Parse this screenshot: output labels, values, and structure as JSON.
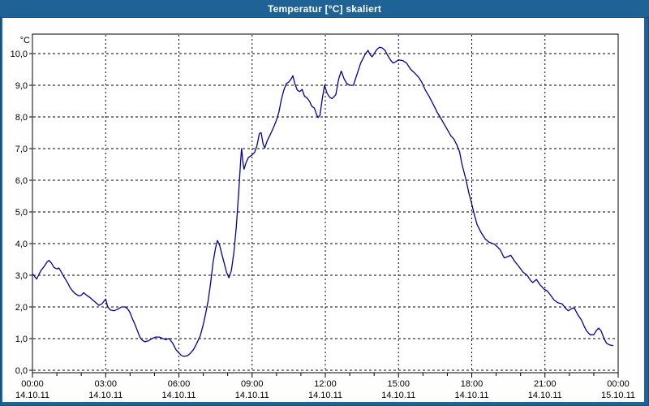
{
  "window": {
    "title": "Temperatur [°C] skaliert",
    "titlebar_color": "#1F6396",
    "border_color": "#1F6396",
    "plot_background": "#FFFFFF"
  },
  "chart_data": {
    "type": "line",
    "title": "Temperatur [°C] skaliert",
    "ylabel": "°C",
    "xlabel": "",
    "grid": true,
    "legend": "none",
    "ylim": [
      0,
      10.6
    ],
    "xlim_hours": [
      0,
      24
    ],
    "line_color": "#0000A0",
    "grid_color": "#000000",
    "frame_color": "#000000",
    "y_ticks": [
      {
        "value": 0,
        "label": "0,0"
      },
      {
        "value": 1,
        "label": "1,0"
      },
      {
        "value": 2,
        "label": "2,0"
      },
      {
        "value": 3,
        "label": "3,0"
      },
      {
        "value": 4,
        "label": "4,0"
      },
      {
        "value": 5,
        "label": "5,0"
      },
      {
        "value": 6,
        "label": "6,0"
      },
      {
        "value": 7,
        "label": "7,0"
      },
      {
        "value": 8,
        "label": "8,0"
      },
      {
        "value": 9,
        "label": "9,0"
      },
      {
        "value": 10,
        "label": "10,0"
      }
    ],
    "x_ticks": [
      {
        "hour": 0,
        "time": "00:00",
        "date": "14.10.11"
      },
      {
        "hour": 3,
        "time": "03:00",
        "date": "14.10.11"
      },
      {
        "hour": 6,
        "time": "06:00",
        "date": "14.10.11"
      },
      {
        "hour": 9,
        "time": "09:00",
        "date": "14.10.11"
      },
      {
        "hour": 12,
        "time": "12:00",
        "date": "14.10.11"
      },
      {
        "hour": 15,
        "time": "15:00",
        "date": "14.10.11"
      },
      {
        "hour": 18,
        "time": "18:00",
        "date": "14.10.11"
      },
      {
        "hour": 21,
        "time": "21:00",
        "date": "14.10.11"
      },
      {
        "hour": 24,
        "time": "00:00",
        "date": "15.10.11"
      }
    ],
    "minor_x_tick_every_hours": 1,
    "series": [
      {
        "name": "Temperatur",
        "points": [
          [
            0.0,
            3.05
          ],
          [
            0.1,
            2.95
          ],
          [
            0.17,
            2.88
          ],
          [
            0.25,
            3.0
          ],
          [
            0.35,
            3.15
          ],
          [
            0.5,
            3.3
          ],
          [
            0.6,
            3.42
          ],
          [
            0.68,
            3.47
          ],
          [
            0.78,
            3.38
          ],
          [
            0.88,
            3.25
          ],
          [
            1.0,
            3.2
          ],
          [
            1.08,
            3.23
          ],
          [
            1.17,
            3.12
          ],
          [
            1.25,
            3.0
          ],
          [
            1.35,
            2.88
          ],
          [
            1.45,
            2.75
          ],
          [
            1.55,
            2.6
          ],
          [
            1.65,
            2.5
          ],
          [
            1.75,
            2.42
          ],
          [
            1.9,
            2.35
          ],
          [
            2.0,
            2.37
          ],
          [
            2.1,
            2.45
          ],
          [
            2.2,
            2.38
          ],
          [
            2.35,
            2.3
          ],
          [
            2.5,
            2.2
          ],
          [
            2.62,
            2.12
          ],
          [
            2.73,
            2.05
          ],
          [
            2.85,
            2.1
          ],
          [
            3.0,
            2.25
          ],
          [
            3.08,
            2.0
          ],
          [
            3.2,
            1.9
          ],
          [
            3.35,
            1.88
          ],
          [
            3.5,
            1.93
          ],
          [
            3.65,
            2.0
          ],
          [
            3.8,
            2.0
          ],
          [
            3.92,
            1.92
          ],
          [
            4.0,
            1.82
          ],
          [
            4.1,
            1.62
          ],
          [
            4.2,
            1.45
          ],
          [
            4.3,
            1.25
          ],
          [
            4.4,
            1.05
          ],
          [
            4.5,
            0.95
          ],
          [
            4.6,
            0.9
          ],
          [
            4.75,
            0.93
          ],
          [
            4.9,
            1.0
          ],
          [
            5.05,
            1.05
          ],
          [
            5.2,
            1.05
          ],
          [
            5.35,
            1.0
          ],
          [
            5.45,
            0.97
          ],
          [
            5.6,
            1.0
          ],
          [
            5.75,
            0.85
          ],
          [
            5.88,
            0.65
          ],
          [
            6.0,
            0.55
          ],
          [
            6.1,
            0.47
          ],
          [
            6.2,
            0.44
          ],
          [
            6.35,
            0.46
          ],
          [
            6.45,
            0.52
          ],
          [
            6.6,
            0.65
          ],
          [
            6.75,
            0.88
          ],
          [
            6.88,
            1.1
          ],
          [
            7.0,
            1.45
          ],
          [
            7.1,
            1.8
          ],
          [
            7.2,
            2.2
          ],
          [
            7.3,
            2.75
          ],
          [
            7.4,
            3.4
          ],
          [
            7.5,
            3.85
          ],
          [
            7.58,
            4.1
          ],
          [
            7.67,
            3.95
          ],
          [
            7.75,
            3.7
          ],
          [
            7.85,
            3.4
          ],
          [
            7.95,
            3.1
          ],
          [
            8.05,
            2.92
          ],
          [
            8.15,
            3.15
          ],
          [
            8.25,
            3.7
          ],
          [
            8.35,
            4.5
          ],
          [
            8.45,
            5.6
          ],
          [
            8.53,
            6.6
          ],
          [
            8.57,
            7.0
          ],
          [
            8.62,
            6.6
          ],
          [
            8.67,
            6.35
          ],
          [
            8.75,
            6.55
          ],
          [
            8.85,
            6.72
          ],
          [
            9.0,
            6.8
          ],
          [
            9.1,
            6.88
          ],
          [
            9.2,
            7.1
          ],
          [
            9.3,
            7.48
          ],
          [
            9.37,
            7.5
          ],
          [
            9.45,
            7.15
          ],
          [
            9.52,
            7.02
          ],
          [
            9.62,
            7.25
          ],
          [
            9.75,
            7.45
          ],
          [
            9.87,
            7.65
          ],
          [
            10.0,
            7.9
          ],
          [
            10.1,
            8.15
          ],
          [
            10.2,
            8.55
          ],
          [
            10.3,
            8.85
          ],
          [
            10.4,
            9.05
          ],
          [
            10.5,
            9.1
          ],
          [
            10.6,
            9.2
          ],
          [
            10.67,
            9.3
          ],
          [
            10.75,
            9.05
          ],
          [
            10.85,
            8.85
          ],
          [
            10.95,
            8.8
          ],
          [
            11.05,
            8.87
          ],
          [
            11.15,
            8.65
          ],
          [
            11.25,
            8.6
          ],
          [
            11.35,
            8.5
          ],
          [
            11.45,
            8.33
          ],
          [
            11.55,
            8.28
          ],
          [
            11.63,
            8.1
          ],
          [
            11.7,
            7.98
          ],
          [
            11.78,
            8.05
          ],
          [
            11.88,
            8.6
          ],
          [
            11.97,
            9.0
          ],
          [
            12.07,
            8.75
          ],
          [
            12.18,
            8.62
          ],
          [
            12.28,
            8.58
          ],
          [
            12.43,
            8.7
          ],
          [
            12.55,
            9.2
          ],
          [
            12.65,
            9.45
          ],
          [
            12.77,
            9.2
          ],
          [
            12.88,
            9.05
          ],
          [
            13.0,
            9.0
          ],
          [
            13.15,
            9.0
          ],
          [
            13.3,
            9.35
          ],
          [
            13.45,
            9.7
          ],
          [
            13.55,
            9.85
          ],
          [
            13.65,
            10.0
          ],
          [
            13.75,
            10.1
          ],
          [
            13.85,
            9.95
          ],
          [
            13.92,
            9.9
          ],
          [
            14.0,
            10.0
          ],
          [
            14.1,
            10.12
          ],
          [
            14.22,
            10.2
          ],
          [
            14.33,
            10.18
          ],
          [
            14.45,
            10.1
          ],
          [
            14.55,
            9.95
          ],
          [
            14.67,
            9.8
          ],
          [
            14.78,
            9.7
          ],
          [
            14.9,
            9.75
          ],
          [
            15.0,
            9.8
          ],
          [
            15.17,
            9.78
          ],
          [
            15.33,
            9.7
          ],
          [
            15.5,
            9.5
          ],
          [
            15.67,
            9.38
          ],
          [
            15.83,
            9.25
          ],
          [
            15.95,
            9.1
          ],
          [
            16.1,
            8.85
          ],
          [
            16.25,
            8.65
          ],
          [
            16.42,
            8.4
          ],
          [
            16.58,
            8.15
          ],
          [
            16.7,
            8.0
          ],
          [
            16.85,
            7.8
          ],
          [
            17.0,
            7.6
          ],
          [
            17.15,
            7.4
          ],
          [
            17.27,
            7.3
          ],
          [
            17.4,
            7.1
          ],
          [
            17.5,
            6.9
          ],
          [
            17.6,
            6.5
          ],
          [
            17.77,
            6.0
          ],
          [
            17.88,
            5.6
          ],
          [
            17.97,
            5.35
          ],
          [
            18.1,
            4.93
          ],
          [
            18.22,
            4.6
          ],
          [
            18.37,
            4.37
          ],
          [
            18.55,
            4.15
          ],
          [
            18.7,
            4.05
          ],
          [
            18.93,
            3.98
          ],
          [
            19.05,
            3.9
          ],
          [
            19.17,
            3.8
          ],
          [
            19.33,
            3.55
          ],
          [
            19.45,
            3.58
          ],
          [
            19.6,
            3.63
          ],
          [
            19.75,
            3.45
          ],
          [
            19.93,
            3.28
          ],
          [
            20.1,
            3.1
          ],
          [
            20.27,
            3.0
          ],
          [
            20.4,
            2.85
          ],
          [
            20.5,
            2.77
          ],
          [
            20.65,
            2.87
          ],
          [
            20.8,
            2.7
          ],
          [
            20.97,
            2.56
          ],
          [
            21.1,
            2.5
          ],
          [
            21.25,
            2.35
          ],
          [
            21.37,
            2.22
          ],
          [
            21.53,
            2.13
          ],
          [
            21.7,
            2.1
          ],
          [
            21.85,
            1.95
          ],
          [
            21.95,
            1.88
          ],
          [
            22.1,
            1.95
          ],
          [
            22.2,
            1.97
          ],
          [
            22.35,
            1.75
          ],
          [
            22.5,
            1.58
          ],
          [
            22.6,
            1.4
          ],
          [
            22.7,
            1.25
          ],
          [
            22.85,
            1.12
          ],
          [
            23.0,
            1.12
          ],
          [
            23.1,
            1.25
          ],
          [
            23.2,
            1.33
          ],
          [
            23.3,
            1.25
          ],
          [
            23.42,
            1.0
          ],
          [
            23.53,
            0.85
          ],
          [
            23.65,
            0.8
          ],
          [
            23.78,
            0.78
          ]
        ]
      }
    ]
  }
}
